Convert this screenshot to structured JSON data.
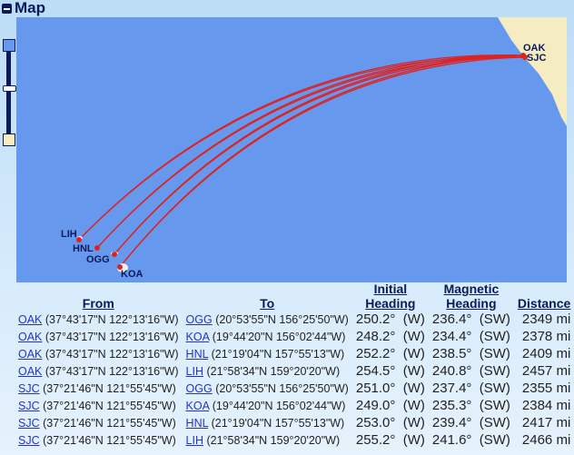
{
  "title": "Map",
  "map": {
    "colors": {
      "ocean": "#6699ee",
      "land": "#f5ecc2",
      "route": "#dd2222"
    },
    "labels": {
      "oak": "OAK",
      "sjc": "SJC",
      "lih": "LIH",
      "hnl": "HNL",
      "ogg": "OGG",
      "koa": "KOA"
    }
  },
  "table": {
    "headers": {
      "from": "From",
      "to": "To",
      "initial1": "Initial",
      "initial2": "Heading",
      "magnetic1": "Magnetic",
      "magnetic2": "Heading",
      "distance": "Distance"
    },
    "rows": [
      {
        "from": "OAK",
        "from_coord": "(37°43'17\"N 122°13'16\"W)",
        "to": "OGG",
        "to_coord": "(20°53'55\"N 156°25'50\"W)",
        "initial": "250.2°  (W)",
        "magnetic": "236.4°  (SW)",
        "distance": "2349 mi"
      },
      {
        "from": "OAK",
        "from_coord": "(37°43'17\"N 122°13'16\"W)",
        "to": "KOA",
        "to_coord": "(19°44'20\"N 156°02'44\"W)",
        "initial": "248.2°  (W)",
        "magnetic": "234.4°  (SW)",
        "distance": "2378 mi"
      },
      {
        "from": "OAK",
        "from_coord": "(37°43'17\"N 122°13'16\"W)",
        "to": "HNL",
        "to_coord": "(21°19'04\"N 157°55'13\"W)",
        "initial": "252.2°  (W)",
        "magnetic": "238.5°  (SW)",
        "distance": "2409 mi"
      },
      {
        "from": "OAK",
        "from_coord": "(37°43'17\"N 122°13'16\"W)",
        "to": "LIH",
        "to_coord": "(21°58'34\"N 159°20'20\"W)",
        "initial": "254.5°  (W)",
        "magnetic": "240.8°  (SW)",
        "distance": "2457 mi"
      },
      {
        "from": "SJC",
        "from_coord": "(37°21'46\"N 121°55'45\"W)",
        "to": "OGG",
        "to_coord": "(20°53'55\"N 156°25'50\"W)",
        "initial": "251.0°  (W)",
        "magnetic": "237.4°  (SW)",
        "distance": "2355 mi"
      },
      {
        "from": "SJC",
        "from_coord": "(37°21'46\"N 121°55'45\"W)",
        "to": "KOA",
        "to_coord": "(19°44'20\"N 156°02'44\"W)",
        "initial": "249.0°  (W)",
        "magnetic": "235.3°  (SW)",
        "distance": "2384 mi"
      },
      {
        "from": "SJC",
        "from_coord": "(37°21'46\"N 121°55'45\"W)",
        "to": "HNL",
        "to_coord": "(21°19'04\"N 157°55'13\"W)",
        "initial": "253.0°  (W)",
        "magnetic": "239.4°  (SW)",
        "distance": "2417 mi"
      },
      {
        "from": "SJC",
        "from_coord": "(37°21'46\"N 121°55'45\"W)",
        "to": "LIH",
        "to_coord": "(21°58'34\"N 159°20'20\"W)",
        "initial": "255.2°  (W)",
        "magnetic": "241.6°  (SW)",
        "distance": "2466 mi"
      }
    ]
  }
}
